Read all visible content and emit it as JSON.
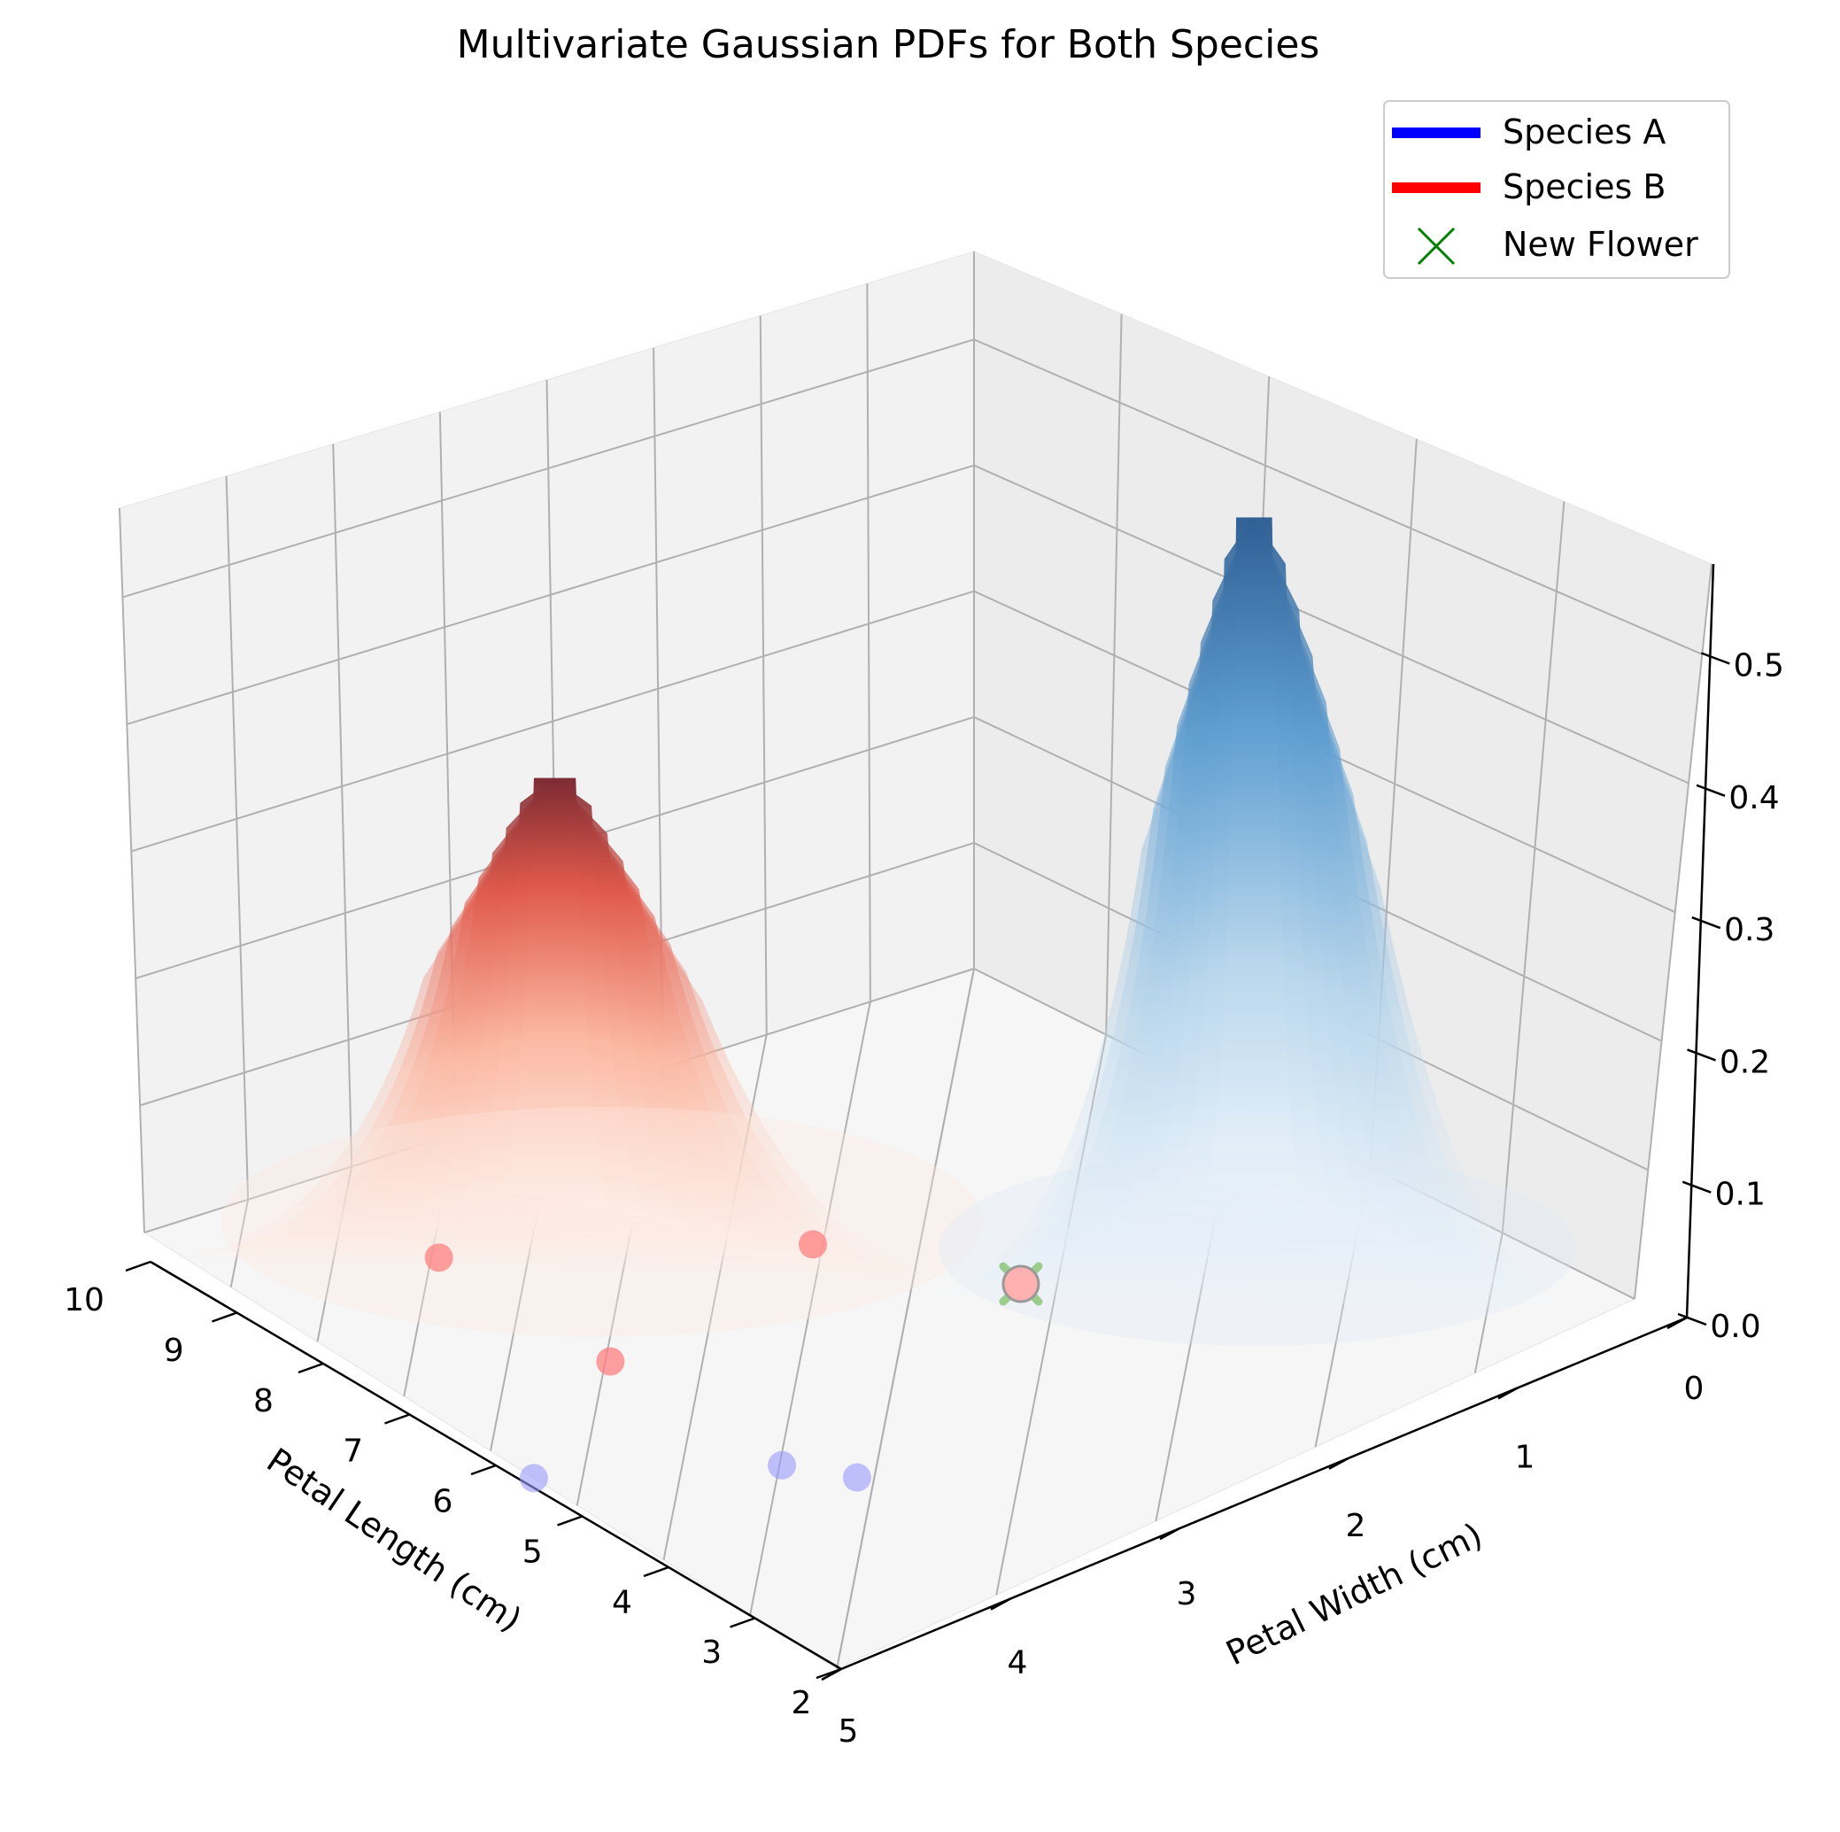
{
  "chart_data": {
    "type": "surface3d",
    "title": "Multivariate Gaussian PDFs for Both Species",
    "xlabel": "Petal Length (cm)",
    "ylabel": "Petal Width (cm)",
    "zlabel": "",
    "x_ticks": [
      "2",
      "3",
      "4",
      "5",
      "6",
      "7",
      "8",
      "9",
      "10"
    ],
    "y_ticks": [
      "0",
      "1",
      "2",
      "3",
      "4",
      "5"
    ],
    "z_ticks": [
      "0.0",
      "0.1",
      "0.2",
      "0.3",
      "0.4",
      "0.5"
    ],
    "xlim": [
      2,
      10
    ],
    "ylim": [
      0,
      5
    ],
    "zlim": [
      0,
      0.57
    ],
    "grid": true,
    "legend_position": "top-right",
    "legend": [
      {
        "label": "Species A",
        "color": "#0000ff",
        "marker": "line"
      },
      {
        "label": "Species B",
        "color": "#ff0000",
        "marker": "line"
      },
      {
        "label": "New Flower",
        "color": "#008000",
        "marker": "x"
      }
    ],
    "series": [
      {
        "name": "Species A",
        "kind": "surface",
        "colormap": "Blues",
        "peak": {
          "x": 5.0,
          "y": 0.5,
          "z": 0.55
        },
        "samples": [
          {
            "x": 5.5,
            "y": 0.0
          },
          {
            "x": 4.0,
            "y": 1.2
          },
          {
            "x": 4.5,
            "y": 1.0
          }
        ]
      },
      {
        "name": "Species B",
        "kind": "surface",
        "colormap": "Reds",
        "peak": {
          "x": 7.0,
          "y": 2.0,
          "z": 0.33
        },
        "samples": [
          {
            "x": 8.5,
            "y": 1.0
          },
          {
            "x": 7.0,
            "y": 2.5
          },
          {
            "x": 6.5,
            "y": 1.0
          },
          {
            "x": 5.5,
            "y": 3.0
          }
        ]
      },
      {
        "name": "New Flower",
        "kind": "point",
        "marker": "x",
        "points": [
          {
            "x": 5.5,
            "y": 3.0,
            "z": 0.0
          }
        ]
      }
    ]
  },
  "colors": {
    "species_a": "#0000ff",
    "species_b": "#ff0000",
    "new_flower": "#008000",
    "pane": "#f2f2f2",
    "grid": "#b0b0b0"
  }
}
